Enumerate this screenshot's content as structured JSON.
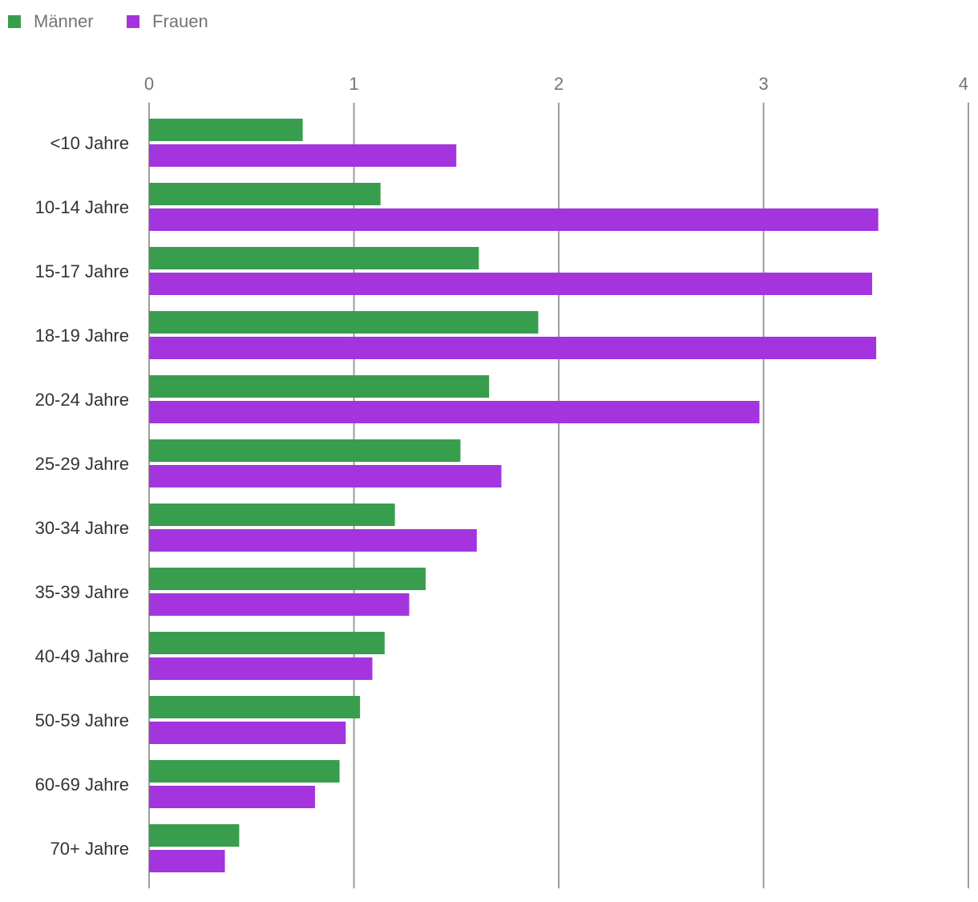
{
  "chart_data": {
    "type": "bar",
    "orientation": "horizontal",
    "title": "",
    "xlabel": "",
    "ylabel": "",
    "xlim": [
      0,
      4
    ],
    "xticks": [
      "0",
      "1",
      "2",
      "3",
      "4"
    ],
    "grid": true,
    "legend_position": "top-left",
    "categories": [
      "<10 Jahre",
      "10-14 Jahre",
      "15-17 Jahre",
      "18-19 Jahre",
      "20-24 Jahre",
      "25-29 Jahre",
      "30-34 Jahre",
      "35-39 Jahre",
      "40-49 Jahre",
      "50-59 Jahre",
      "60-69 Jahre",
      "70+ Jahre"
    ],
    "series": [
      {
        "name": "Männer",
        "color": "#389e4e",
        "values": [
          0.75,
          1.13,
          1.61,
          1.9,
          1.66,
          1.52,
          1.2,
          1.35,
          1.15,
          1.03,
          0.93,
          0.44
        ]
      },
      {
        "name": "Frauen",
        "color": "#a334de",
        "values": [
          1.5,
          3.56,
          3.53,
          3.55,
          2.98,
          1.72,
          1.6,
          1.27,
          1.09,
          0.96,
          0.81,
          0.37
        ]
      }
    ]
  }
}
